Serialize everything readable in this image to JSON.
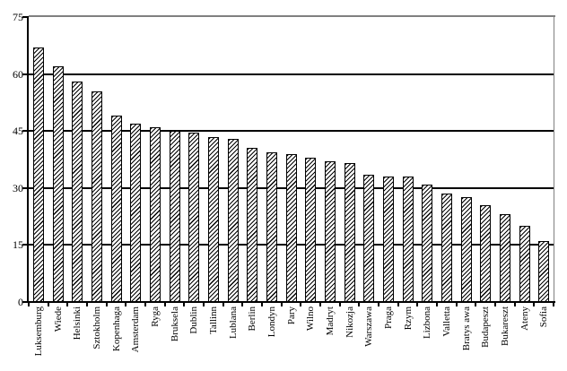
{
  "chart_data": {
    "type": "bar",
    "title": "",
    "xlabel": "",
    "ylabel": "",
    "categories": [
      "Luksemburg",
      "Wiede",
      "Helsinki",
      "Sztokholm",
      "Kopenhaga",
      "Amsterdam",
      "Ryga",
      "Bruksela",
      "Dublin",
      "Tallinn",
      "Lublana",
      "Berlin",
      "Londyn",
      "Pary",
      "Wilno",
      "Madryt",
      "Nikozja",
      "Warszawa",
      "Praga",
      "Rzym",
      "Lizbona",
      "Valletta",
      "Bratys awa",
      "Budapeszt",
      "Bukareszt",
      "Ateny",
      "Sofia"
    ],
    "values": [
      67,
      62,
      58,
      55.5,
      49,
      47,
      46,
      45,
      44.5,
      43.5,
      43,
      40.5,
      39.5,
      39,
      38,
      37,
      36.5,
      33.5,
      33,
      33,
      31,
      28.5,
      27.5,
      25.5,
      23,
      20,
      16
    ],
    "ylim": [
      0,
      75
    ],
    "y_ticks": [
      0,
      15,
      30,
      45,
      60,
      75
    ],
    "grid": true,
    "legend": false,
    "bar_style": "white-with-diagonal-hatch",
    "colors": {
      "bar_outline": "#000000",
      "bar_hatch": "#000000",
      "bar_fill": "#ffffff",
      "gridline": "#000000",
      "axis": "#000000",
      "plot_frame": "#808080",
      "background": "#ffffff",
      "text": "#000000"
    }
  }
}
